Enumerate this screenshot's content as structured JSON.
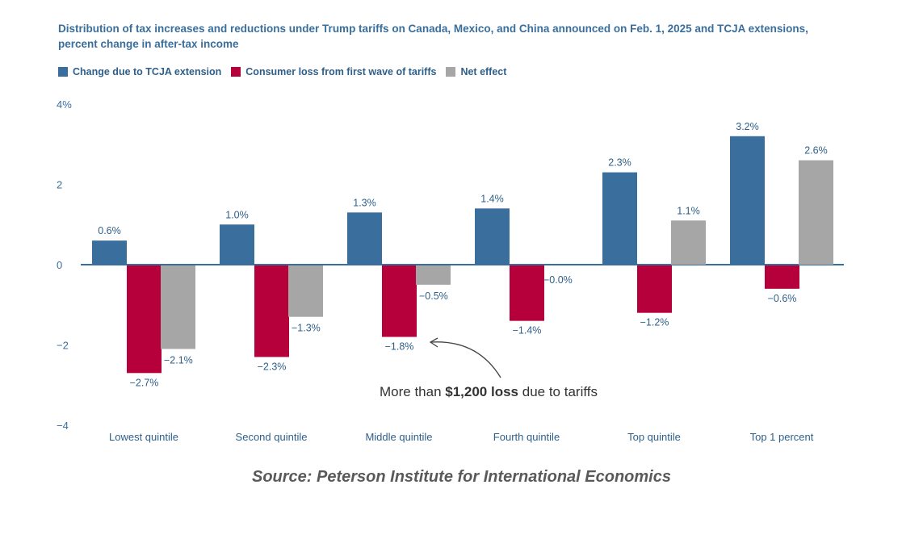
{
  "chart_data": {
    "type": "bar",
    "title": "Distribution of tax increases and reductions under Trump tariffs on Canada, Mexico, and China announced on Feb. 1, 2025 and TCJA extensions, percent change in after-tax income",
    "categories": [
      "Lowest quintile",
      "Second quintile",
      "Middle quintile",
      "Fourth quintile",
      "Top quintile",
      "Top 1 percent"
    ],
    "series": [
      {
        "name": "Change due to TCJA extension",
        "color": "#3a6e9c",
        "values": [
          0.6,
          1.0,
          1.3,
          1.4,
          2.3,
          3.2
        ],
        "labels": [
          "0.6%",
          "1.0%",
          "1.3%",
          "1.4%",
          "2.3%",
          "3.2%"
        ]
      },
      {
        "name": "Consumer loss from first wave of tariffs",
        "color": "#b5003c",
        "values": [
          -2.7,
          -2.3,
          -1.8,
          -1.4,
          -1.2,
          -0.6
        ],
        "labels": [
          "−2.7%",
          "−2.3%",
          "−1.8%",
          "−1.4%",
          "−1.2%",
          "−0.6%"
        ]
      },
      {
        "name": "Net effect",
        "color": "#a6a6a6",
        "values": [
          -2.1,
          -1.3,
          -0.5,
          0.0,
          1.1,
          2.6
        ],
        "labels": [
          "−2.1%",
          "−1.3%",
          "−0.5%",
          "−0.0%",
          "1.1%",
          "2.6%"
        ]
      }
    ],
    "ylim": [
      -4,
      4
    ],
    "yticks": [
      4,
      2,
      0,
      -2,
      -4
    ],
    "ytick_labels": [
      "4%",
      "2",
      "0",
      "−2",
      "−4"
    ],
    "legend_position": "top-left",
    "grid": false,
    "annotation": {
      "prefix": "More than ",
      "bold": "$1,200 loss",
      "suffix": " due to tariffs",
      "category": "Middle quintile",
      "series": "Consumer loss from first wave of tariffs"
    }
  },
  "source": "Source: Peterson Institute for International Economics"
}
